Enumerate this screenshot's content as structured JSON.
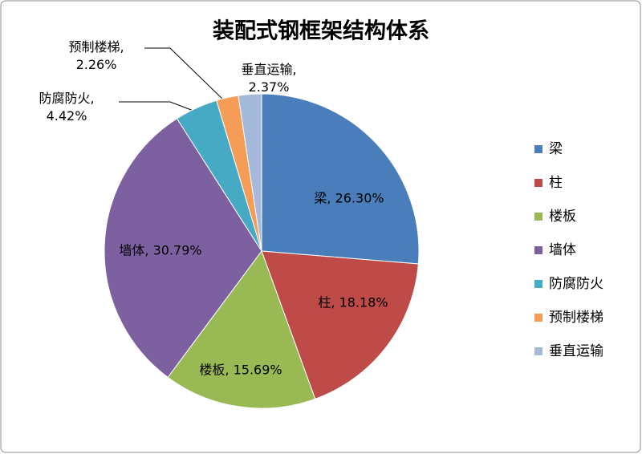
{
  "chart_data": {
    "type": "pie",
    "title": "装配式钢框架结构体系",
    "categories": [
      "梁",
      "柱",
      "楼板",
      "墙体",
      "防腐防火",
      "预制楼梯",
      "垂直运输"
    ],
    "values": [
      26.3,
      18.18,
      15.69,
      30.79,
      4.42,
      2.26,
      2.37
    ],
    "value_labels": [
      "梁, 26.30%",
      "柱, 18.18%",
      "楼板, 15.69%",
      "墙体, 30.79%",
      "防腐防火, 4.42%",
      "预制楼梯, 2.26%",
      "垂直运输, 2.37%"
    ],
    "colors": [
      "#4a7ebb",
      "#be4b48",
      "#98b954",
      "#7d60a0",
      "#46aac5",
      "#f59d56",
      "#a5b9db"
    ],
    "legend": "right"
  }
}
